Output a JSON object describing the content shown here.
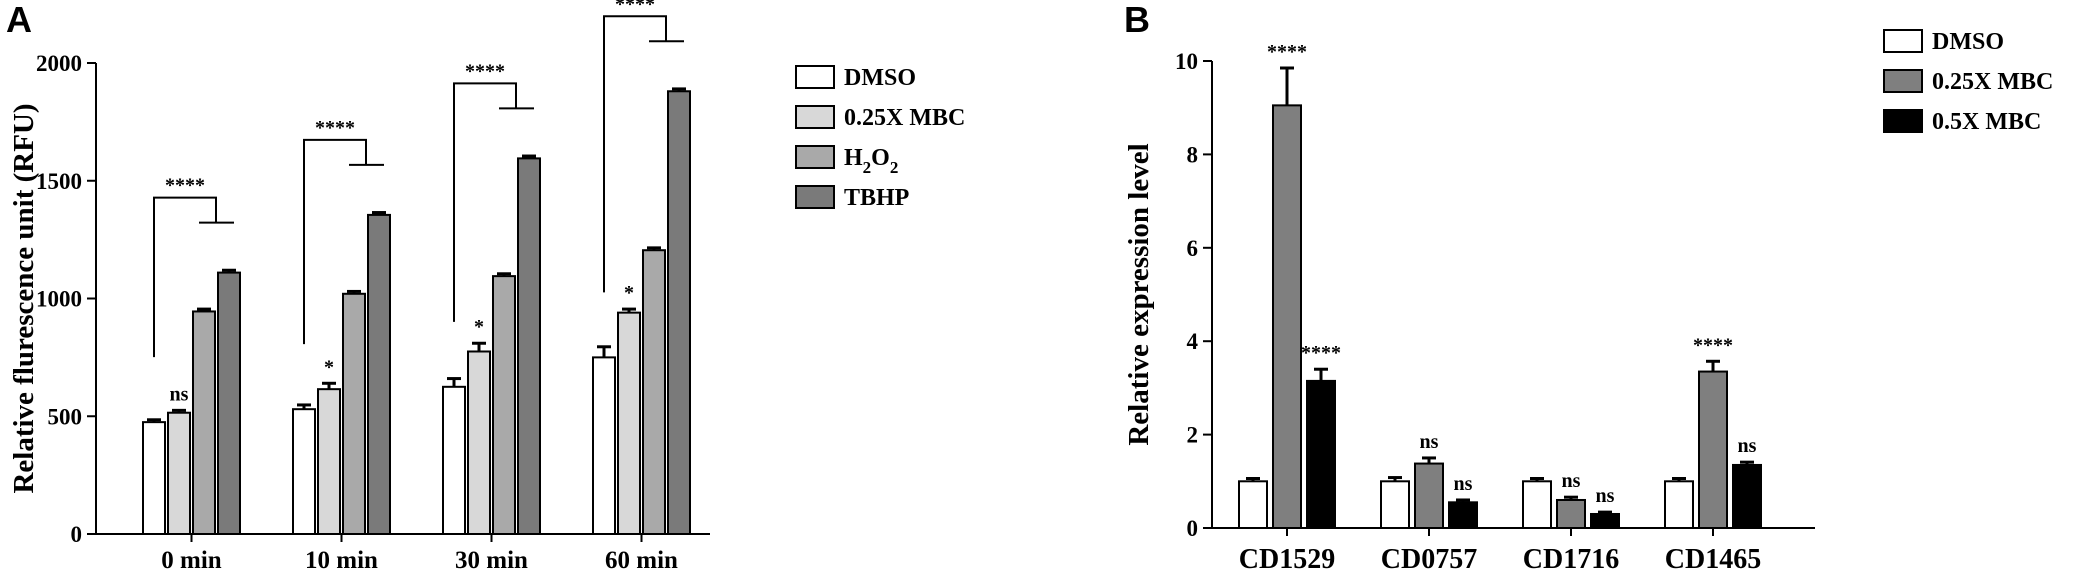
{
  "figure": {
    "panel_a_letter": "A",
    "panel_b_letter": "B"
  },
  "chart_data": [
    {
      "type": "bar",
      "panel": "A",
      "title": "",
      "xlabel": "",
      "ylabel": "Relative flurescence unit (RFU)",
      "ylim": [
        0,
        2000
      ],
      "yticks": [
        "0",
        "500",
        "1000",
        "1500",
        "2000"
      ],
      "grid": false,
      "legend_position": "right",
      "categories": [
        "0 min",
        "10 min",
        "30 min",
        "60 min"
      ],
      "series": [
        {
          "name": "DMSO",
          "color": "#ffffff",
          "values": [
            475,
            530,
            625,
            750
          ],
          "errors": [
            10,
            18,
            35,
            45
          ]
        },
        {
          "name": "0.25X MBC",
          "color": "#d8d8d8",
          "values": [
            515,
            615,
            775,
            940
          ],
          "errors": [
            10,
            25,
            35,
            15
          ]
        },
        {
          "name": "H2O2",
          "color": "#a9a9a9",
          "values": [
            945,
            1020,
            1095,
            1205
          ],
          "errors": [
            10,
            10,
            10,
            10
          ]
        },
        {
          "name": "TBHP",
          "color": "#7a7a7a",
          "values": [
            1110,
            1355,
            1595,
            1880
          ],
          "errors": [
            10,
            10,
            10,
            10
          ]
        }
      ],
      "legend_labels": [
        {
          "main": "DMSO",
          "sub": ""
        },
        {
          "main": "0.25X MBC",
          "sub": ""
        },
        {
          "main": "H",
          "sub": "2",
          "main2": "O",
          "sub2": "2"
        },
        {
          "main": "TBHP",
          "sub": ""
        }
      ],
      "annotations": [
        {
          "category": 0,
          "series": 1,
          "text": "ns"
        },
        {
          "category": 1,
          "series": 1,
          "text": "*"
        },
        {
          "category": 2,
          "series": 1,
          "text": "*"
        },
        {
          "category": 3,
          "series": 1,
          "text": "*"
        }
      ],
      "brackets": [
        {
          "category": 0,
          "text": "****"
        },
        {
          "category": 1,
          "text": "****"
        },
        {
          "category": 2,
          "text": "****"
        },
        {
          "category": 3,
          "text": "****"
        }
      ]
    },
    {
      "type": "bar",
      "panel": "B",
      "title": "",
      "xlabel": "",
      "ylabel": "Relative expression level",
      "ylim": [
        0,
        10
      ],
      "yticks": [
        "0",
        "2",
        "4",
        "6",
        "8",
        "10"
      ],
      "grid": false,
      "legend_position": "top-right",
      "categories": [
        "CD1529",
        "CD0757",
        "CD1716",
        "CD1465"
      ],
      "series": [
        {
          "name": "DMSO",
          "color": "#ffffff",
          "values": [
            1.0,
            1.0,
            1.0,
            1.0
          ],
          "errors": [
            0.06,
            0.08,
            0.06,
            0.06
          ]
        },
        {
          "name": "0.25X MBC",
          "color": "#7f7f7f",
          "values": [
            9.05,
            1.38,
            0.6,
            3.35
          ],
          "errors": [
            0.8,
            0.12,
            0.06,
            0.22
          ]
        },
        {
          "name": "0.5X MBC",
          "color": "#000000",
          "values": [
            3.15,
            0.55,
            0.3,
            1.35
          ],
          "errors": [
            0.25,
            0.05,
            0.04,
            0.06
          ]
        }
      ],
      "legend_labels": [
        {
          "main": "DMSO"
        },
        {
          "main": "0.25X MBC"
        },
        {
          "main": "0.5X MBC"
        }
      ],
      "annotations": [
        {
          "category": 0,
          "series": 1,
          "text": "****"
        },
        {
          "category": 0,
          "series": 2,
          "text": "****"
        },
        {
          "category": 1,
          "series": 1,
          "text": "ns"
        },
        {
          "category": 1,
          "series": 2,
          "text": "ns"
        },
        {
          "category": 2,
          "series": 1,
          "text": "ns"
        },
        {
          "category": 2,
          "series": 2,
          "text": "ns"
        },
        {
          "category": 3,
          "series": 1,
          "text": "****"
        },
        {
          "category": 3,
          "series": 2,
          "text": "ns"
        }
      ]
    }
  ]
}
